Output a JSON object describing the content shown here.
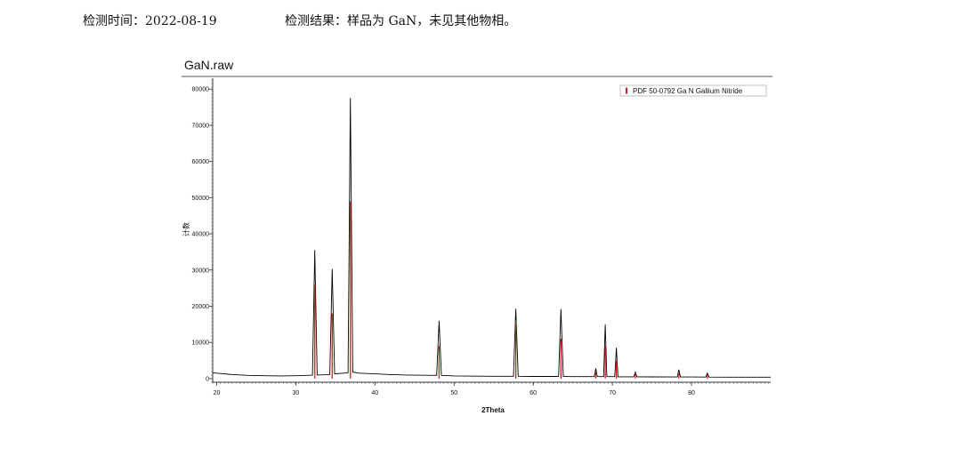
{
  "header": {
    "date": "检测时间：2022-08-19",
    "result": "检测结果：样品为 GaN，未见其他物相。"
  },
  "chart_data": {
    "type": "line",
    "title": "GaN.raw",
    "x_label": "2Theta",
    "y_label": "计数",
    "xlim": [
      19.5,
      90
    ],
    "ylim": [
      -1000,
      83000
    ],
    "xticks": [
      20,
      30,
      40,
      50,
      60,
      70,
      80
    ],
    "yticks": [
      0,
      10000,
      20000,
      30000,
      40000,
      50000,
      60000,
      70000,
      80000
    ],
    "grid": false,
    "legend": "upper right",
    "x": [
      19.5,
      20,
      22,
      24,
      26,
      28,
      30,
      32.1,
      32.4,
      32.7,
      34.3,
      34.6,
      34.9,
      36.6,
      36.9,
      37.2,
      38,
      40,
      42,
      44,
      47.8,
      48.1,
      48.4,
      50,
      55,
      57.5,
      57.8,
      58.1,
      60,
      63.2,
      63.5,
      63.8,
      65,
      67.7,
      67.9,
      68.1,
      68.9,
      69.1,
      69.3,
      70.3,
      70.5,
      70.7,
      72.7,
      72.9,
      73.1,
      75,
      78.2,
      78.4,
      78.6,
      80,
      81.8,
      82,
      82.2,
      85,
      90
    ],
    "series": [
      {
        "color": "#000000",
        "values": [
          1600,
          1500,
          1100,
          900,
          800,
          750,
          800,
          950,
          35500,
          1000,
          1100,
          30300,
          1300,
          1600,
          77500,
          1800,
          1500,
          1300,
          1100,
          1000,
          900,
          16000,
          900,
          750,
          650,
          650,
          19300,
          650,
          600,
          600,
          19200,
          600,
          550,
          550,
          2800,
          550,
          550,
          15000,
          550,
          550,
          8500,
          500,
          500,
          1800,
          500,
          480,
          450,
          2500,
          450,
          450,
          430,
          1500,
          430,
          400,
          400
        ]
      }
    ],
    "reference": {
      "name": "PDF 50-0792 Ga N Gallium Nitride",
      "color": "#cc2222",
      "x": [
        32.4,
        34.6,
        36.9,
        48.1,
        57.8,
        63.5,
        67.9,
        69.1,
        70.5,
        72.9,
        78.4,
        82.0
      ],
      "values": [
        26000,
        18000,
        49000,
        9000,
        16000,
        11000,
        2000,
        9000,
        5000,
        1500,
        1500,
        1000
      ]
    }
  }
}
